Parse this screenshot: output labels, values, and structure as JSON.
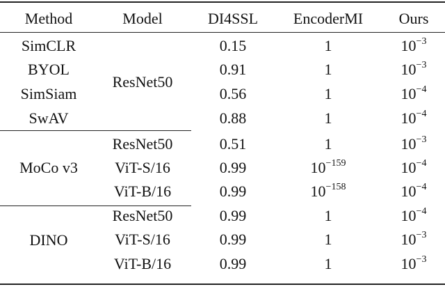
{
  "header": [
    "Method",
    "Model",
    "DI4SSL",
    "EncoderMI",
    "Ours"
  ],
  "groups": [
    {
      "method": null,
      "model": "ResNet50",
      "rows": [
        {
          "method": "SimCLR",
          "di4ssl": "0.15",
          "encodermi": {
            "base": "1",
            "exp": ""
          },
          "ours": {
            "base": "10",
            "exp": "−3"
          }
        },
        {
          "method": "BYOL",
          "di4ssl": "0.91",
          "encodermi": {
            "base": "1",
            "exp": ""
          },
          "ours": {
            "base": "10",
            "exp": "−3"
          }
        },
        {
          "method": "SimSiam",
          "di4ssl": "0.56",
          "encodermi": {
            "base": "1",
            "exp": ""
          },
          "ours": {
            "base": "10",
            "exp": "−4"
          }
        },
        {
          "method": "SwAV",
          "di4ssl": "0.88",
          "encodermi": {
            "base": "1",
            "exp": ""
          },
          "ours": {
            "base": "10",
            "exp": "−4"
          }
        }
      ]
    },
    {
      "method": "MoCo v3",
      "model": null,
      "rows": [
        {
          "model": "ResNet50",
          "di4ssl": "0.51",
          "encodermi": {
            "base": "1",
            "exp": ""
          },
          "ours": {
            "base": "10",
            "exp": "−3"
          }
        },
        {
          "model": "ViT-S/16",
          "di4ssl": "0.99",
          "encodermi": {
            "base": "10",
            "exp": "−159"
          },
          "ours": {
            "base": "10",
            "exp": "−4"
          }
        },
        {
          "model": "ViT-B/16",
          "di4ssl": "0.99",
          "encodermi": {
            "base": "10",
            "exp": "−158"
          },
          "ours": {
            "base": "10",
            "exp": "−4"
          }
        }
      ]
    },
    {
      "method": "DINO",
      "model": null,
      "rows": [
        {
          "model": "ResNet50",
          "di4ssl": "0.99",
          "encodermi": {
            "base": "1",
            "exp": ""
          },
          "ours": {
            "base": "10",
            "exp": "−4"
          }
        },
        {
          "model": "ViT-S/16",
          "di4ssl": "0.99",
          "encodermi": {
            "base": "1",
            "exp": ""
          },
          "ours": {
            "base": "10",
            "exp": "−3"
          }
        },
        {
          "model": "ViT-B/16",
          "di4ssl": "0.99",
          "encodermi": {
            "base": "1",
            "exp": ""
          },
          "ours": {
            "base": "10",
            "exp": "−3"
          }
        }
      ]
    }
  ]
}
